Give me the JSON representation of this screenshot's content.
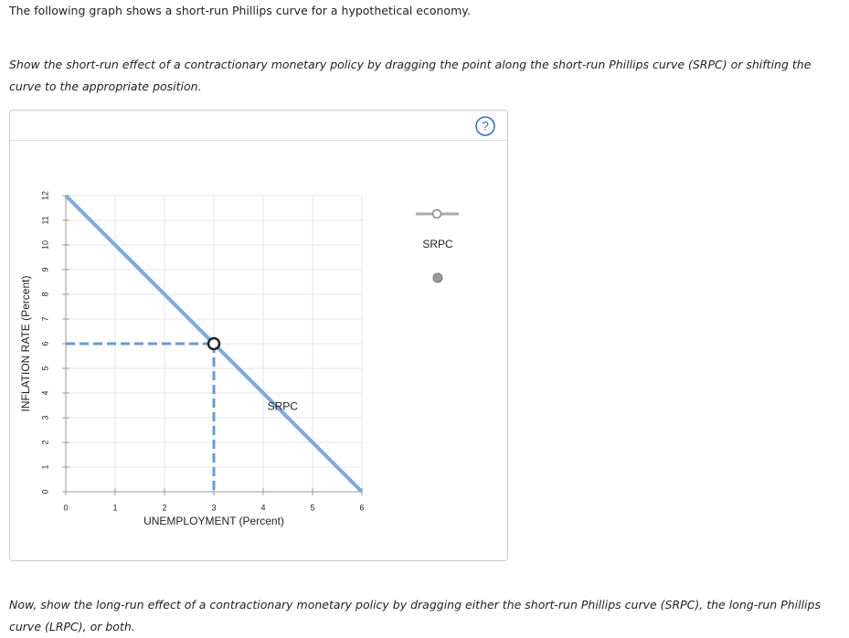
{
  "intro": "The following graph shows a short-run Phillips curve for a hypothetical economy.",
  "instruction": "Show the short-run effect of a contractionary monetary policy by dragging the point along the short-run Phillips curve (SRPC) or shifting the curve to the appropriate position.",
  "help_icon": "?",
  "followup": "Now, show the long-run effect of a contractionary monetary policy by dragging either the short-run Phillips curve (SRPC), the long-run Phillips curve (LRPC), or both.",
  "chart_data": {
    "type": "line",
    "x_label": "UNEMPLOYMENT (Percent)",
    "y_label": "INFLATION RATE (Percent)",
    "series": [
      {
        "name": "SRPC",
        "color": "#7ea9d9",
        "x": [
          0,
          6
        ],
        "values": [
          12,
          0
        ]
      }
    ],
    "points": [
      {
        "x": 3,
        "y": 6
      }
    ],
    "xlim": [
      0,
      6
    ],
    "ylim": [
      0,
      12
    ],
    "xticks": [
      0,
      1,
      2,
      3,
      4,
      5,
      6
    ],
    "yticks": [
      0,
      1,
      2,
      3,
      4,
      5,
      6,
      7,
      8,
      9,
      10,
      11,
      12
    ],
    "grid": true
  }
}
